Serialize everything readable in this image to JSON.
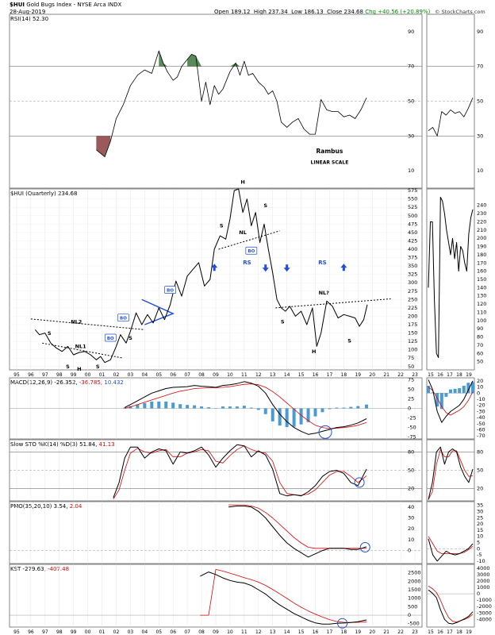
{
  "header": {
    "symbol": "$HUI",
    "name": "Gold Bugs Index - NYSE Arca INDX",
    "date": "28-Aug-2019",
    "open_label": "Open",
    "open": "189.12",
    "high_label": "High",
    "high": "237.34",
    "low_label": "Low",
    "low": "186.13",
    "close_label": "Close",
    "close": "234.68",
    "change": "Chg +40.56 (+20.89%)",
    "logo": "© StockCharts.com"
  },
  "colors": {
    "price": "#000000",
    "signal": "#e00000",
    "histogram": "#4a9ad4",
    "overbought": "#5a8a5a",
    "oversold": "#9a5a5a",
    "annot_blue": "#1f4fd8",
    "grid": "#c8c8c8"
  },
  "chart_data": [
    {
      "type": "line",
      "title": "RSI(14) 52.30",
      "label_name": "RSI(14)",
      "label_value": "52.30",
      "ylim": [
        0,
        100
      ],
      "y_ticks": [
        10,
        30,
        50,
        70,
        90
      ],
      "reference_lines": [
        30,
        50,
        70
      ],
      "x": [
        2000.6,
        2000.9,
        2001.2,
        2001.6,
        2002.0,
        2002.5,
        2003.0,
        2003.5,
        2004.0,
        2004.5,
        2005.0,
        2005.3,
        2005.6,
        2006.0,
        2006.3,
        2006.6,
        2007.0,
        2007.3,
        2007.6,
        2008.0,
        2008.3,
        2008.6,
        2008.9,
        2009.2,
        2009.5,
        2010.0,
        2010.4,
        2010.7,
        2011.0,
        2011.3,
        2011.6,
        2012.0,
        2012.4,
        2012.7,
        2013.0,
        2013.3,
        2013.6,
        2014.0,
        2014.4,
        2014.8,
        2015.2,
        2015.6,
        2016.0,
        2016.4,
        2016.8,
        2017.2,
        2017.6,
        2018.0,
        2018.4,
        2018.8,
        2019.2,
        2019.6
      ],
      "values": [
        22,
        20,
        18,
        27,
        40,
        48,
        59,
        65,
        68,
        66,
        79,
        72,
        67,
        62,
        64,
        70,
        74,
        77,
        76,
        50,
        61,
        48,
        59,
        54,
        57,
        67,
        72,
        65,
        73,
        65,
        66,
        61,
        58,
        54,
        56,
        50,
        38,
        35,
        38,
        40,
        34,
        31,
        31,
        51,
        45,
        44,
        44,
        41,
        42,
        40,
        45,
        52
      ],
      "side_values": [
        33,
        35,
        30,
        44,
        42,
        45,
        43,
        44,
        41,
        46,
        52
      ],
      "annotations": [
        {
          "text": "Rambus",
          "x": 2017.0,
          "y": 20
        },
        {
          "text": "LINEAR SCALE",
          "x": 2017.0,
          "y": 14
        }
      ]
    },
    {
      "type": "line",
      "title": "$HUI (Quarterly) 234.68",
      "label_name": "$HUI (Quarterly)",
      "label_value": "234.68",
      "ylim": [
        40,
        580
      ],
      "y_ticks": [
        50,
        75,
        100,
        125,
        150,
        175,
        200,
        225,
        250,
        275,
        300,
        325,
        350,
        375,
        400,
        425,
        450,
        475,
        500,
        525,
        550,
        575
      ],
      "x_ticks": [
        "95",
        "96",
        "97",
        "98",
        "99",
        "00",
        "01",
        "02",
        "03",
        "04",
        "05",
        "06",
        "07",
        "08",
        "09",
        "10",
        "11",
        "12",
        "13",
        "14",
        "15",
        "16",
        "17",
        "18",
        "19",
        "20",
        "21",
        "22",
        "23"
      ],
      "x": [
        1996.3,
        1996.6,
        1997.0,
        1997.4,
        1997.8,
        1998.2,
        1998.6,
        1999.0,
        1999.4,
        1999.8,
        2000.2,
        2000.6,
        2000.9,
        2001.2,
        2001.6,
        2002.0,
        2002.3,
        2002.7,
        2003.0,
        2003.4,
        2003.8,
        2004.2,
        2004.6,
        2005.0,
        2005.4,
        2005.8,
        2006.2,
        2006.6,
        2007.0,
        2007.4,
        2007.8,
        2008.2,
        2008.6,
        2008.9,
        2009.3,
        2009.7,
        2010.0,
        2010.3,
        2010.6,
        2010.9,
        2011.2,
        2011.5,
        2011.8,
        2012.1,
        2012.4,
        2012.7,
        2013.0,
        2013.3,
        2013.6,
        2013.9,
        2014.2,
        2014.6,
        2015.0,
        2015.4,
        2015.8,
        2016.1,
        2016.4,
        2016.8,
        2017.2,
        2017.6,
        2018.0,
        2018.4,
        2018.8,
        2019.1,
        2019.4,
        2019.65
      ],
      "values": [
        160,
        145,
        150,
        120,
        105,
        95,
        110,
        85,
        92,
        95,
        85,
        70,
        80,
        62,
        70,
        110,
        145,
        120,
        155,
        210,
        175,
        205,
        180,
        225,
        190,
        235,
        305,
        260,
        320,
        340,
        360,
        290,
        310,
        400,
        440,
        430,
        490,
        575,
        580,
        510,
        550,
        470,
        510,
        420,
        475,
        400,
        330,
        250,
        225,
        215,
        230,
        200,
        215,
        175,
        225,
        110,
        150,
        245,
        230,
        195,
        205,
        200,
        195,
        170,
        190,
        235
      ],
      "side_values": [
        140,
        220,
        220,
        125,
        60,
        55,
        250,
        245,
        230,
        210,
        195,
        180,
        200,
        175,
        195,
        160,
        190,
        185,
        170,
        160,
        205,
        225,
        235
      ],
      "side_ylim": [
        40,
        260
      ],
      "side_y_ticks": [
        50,
        60,
        70,
        80,
        90,
        100,
        110,
        120,
        130,
        140,
        150,
        160,
        170,
        180,
        190,
        200,
        210,
        220,
        230,
        240
      ],
      "side_x_ticks": [
        "15",
        "16",
        "17",
        "18",
        "19"
      ],
      "annotations": [
        {
          "text": "NL2",
          "x": 1999.2,
          "y": 178
        },
        {
          "text": "NL1",
          "x": 1999.5,
          "y": 105
        },
        {
          "text": "S",
          "x": 1997.3,
          "y": 144
        },
        {
          "text": "S",
          "x": 1998.6,
          "y": 45
        },
        {
          "text": "H",
          "x": 1999.4,
          "y": 38
        },
        {
          "text": "S",
          "x": 2000.7,
          "y": 45
        },
        {
          "text": "S",
          "x": 2003.0,
          "y": 130
        },
        {
          "text": "BO",
          "x": 2001.6,
          "y": 130
        },
        {
          "text": "BO",
          "x": 2002.5,
          "y": 190
        },
        {
          "text": "BO",
          "x": 2005.8,
          "y": 273
        },
        {
          "text": "S",
          "x": 2009.4,
          "y": 465
        },
        {
          "text": "NL",
          "x": 2010.9,
          "y": 445
        },
        {
          "text": "H",
          "x": 2010.9,
          "y": 595
        },
        {
          "text": "S",
          "x": 2012.5,
          "y": 525
        },
        {
          "text": "BO",
          "x": 2011.5,
          "y": 390
        },
        {
          "text": "RS",
          "x": 2011.2,
          "y": 355
        },
        {
          "text": "S",
          "x": 2013.7,
          "y": 178
        },
        {
          "text": "H",
          "x": 2015.9,
          "y": 90
        },
        {
          "text": "S",
          "x": 2018.4,
          "y": 122
        },
        {
          "text": "NL?",
          "x": 2016.6,
          "y": 265
        },
        {
          "text": "RS",
          "x": 2016.5,
          "y": 355
        }
      ]
    },
    {
      "type": "line",
      "title": "MACD(12,26,9) -26.352, -36.785, 10.432",
      "label_name": "MACD(12,26,9)",
      "label_value": "-26.352,",
      "label_signal": "-36.785,",
      "label_hist": "10.432",
      "ylim": [
        -80,
        80
      ],
      "y_ticks": [
        -75,
        -50,
        -25,
        0,
        25,
        50,
        75
      ],
      "x": [
        2002.6,
        2003.0,
        2003.5,
        2004.0,
        2004.5,
        2005.0,
        2005.5,
        2006.0,
        2006.5,
        2007.0,
        2007.5,
        2008.0,
        2008.5,
        2009.0,
        2009.5,
        2010.0,
        2010.5,
        2011.0,
        2011.5,
        2012.0,
        2012.5,
        2013.0,
        2013.5,
        2014.0,
        2014.5,
        2015.0,
        2015.5,
        2016.0,
        2016.5,
        2017.0,
        2017.5,
        2018.0,
        2018.5,
        2019.0,
        2019.6
      ],
      "series": [
        {
          "name": "MACD",
          "values": [
            2,
            10,
            20,
            30,
            40,
            46,
            52,
            55,
            56,
            57,
            60,
            58,
            57,
            55,
            60,
            62,
            65,
            70,
            66,
            58,
            40,
            10,
            -15,
            -35,
            -50,
            -60,
            -68,
            -65,
            -60,
            -55,
            -50,
            -48,
            -44,
            -38,
            -27
          ]
        },
        {
          "name": "Signal",
          "values": [
            0,
            4,
            10,
            16,
            22,
            28,
            34,
            40,
            45,
            48,
            52,
            53,
            54,
            54,
            55,
            57,
            60,
            63,
            64,
            62,
            55,
            44,
            30,
            14,
            -2,
            -18,
            -32,
            -44,
            -50,
            -53,
            -52,
            -50,
            -48,
            -44,
            -37
          ]
        },
        {
          "name": "Histogram",
          "values": [
            2,
            6,
            10,
            14,
            18,
            18,
            18,
            15,
            11,
            9,
            8,
            5,
            3,
            1,
            5,
            5,
            5,
            7,
            2,
            -4,
            -15,
            -34,
            -45,
            -49,
            -48,
            -42,
            -36,
            -21,
            -10,
            -2,
            2,
            2,
            4,
            6,
            10
          ]
        }
      ],
      "side_series": {
        "macd": [
          22,
          5,
          -30,
          -48,
          -38,
          -30,
          -25,
          -20,
          -10,
          5,
          20
        ],
        "signal": [
          10,
          4,
          -8,
          -22,
          -32,
          -36,
          -32,
          -28,
          -22,
          -12,
          2
        ],
        "hist": [
          12,
          1,
          -22,
          -26,
          -6,
          6,
          7,
          8,
          12,
          17,
          18
        ]
      },
      "side_y_ticks": [
        -70,
        -60,
        -50,
        -40,
        -30,
        -20,
        -10,
        0,
        10,
        20
      ]
    },
    {
      "type": "line",
      "title": "Slow STO %K(14) %D(3) 51.84, 41.13",
      "label_name": "Slow STO %K(14) %D(3)",
      "label_value": "51.84,",
      "label_signal": "41.13",
      "ylim": [
        0,
        100
      ],
      "y_ticks": [
        20,
        50,
        80
      ],
      "x": [
        2001.8,
        2002.2,
        2002.6,
        2003.0,
        2003.5,
        2004.0,
        2004.5,
        2005.0,
        2005.5,
        2006.0,
        2006.5,
        2007.0,
        2007.5,
        2008.0,
        2008.5,
        2009.0,
        2009.5,
        2010.0,
        2010.5,
        2011.0,
        2011.5,
        2012.0,
        2012.5,
        2013.0,
        2013.5,
        2014.0,
        2014.5,
        2015.0,
        2015.5,
        2016.0,
        2016.5,
        2017.0,
        2017.5,
        2018.0,
        2018.5,
        2019.0,
        2019.6
      ],
      "series": [
        {
          "name": "%K",
          "values": [
            5,
            30,
            70,
            88,
            88,
            70,
            80,
            85,
            82,
            60,
            80,
            78,
            82,
            88,
            75,
            55,
            70,
            82,
            92,
            90,
            72,
            82,
            75,
            52,
            12,
            8,
            10,
            8,
            15,
            25,
            40,
            48,
            50,
            45,
            30,
            25,
            52
          ]
        },
        {
          "name": "%D",
          "values": [
            3,
            18,
            50,
            78,
            86,
            80,
            78,
            82,
            84,
            72,
            72,
            78,
            80,
            84,
            82,
            65,
            62,
            74,
            84,
            90,
            84,
            80,
            78,
            65,
            30,
            12,
            10,
            9,
            11,
            18,
            30,
            42,
            48,
            48,
            40,
            30,
            41
          ]
        }
      ],
      "side_series": {
        "k": [
          2,
          30,
          80,
          88,
          60,
          80,
          85,
          80,
          55,
          40,
          30,
          52
        ],
        "d": [
          2,
          15,
          60,
          84,
          72,
          72,
          82,
          82,
          66,
          50,
          40,
          41
        ]
      }
    },
    {
      "type": "line",
      "title": "PMO(35,20,10) 3.54, 2.04",
      "label_name": "PMO(35,20,10)",
      "label_value": "3.54,",
      "label_signal": "2.04",
      "ylim": [
        -12,
        45
      ],
      "y_ticks": [
        0,
        10,
        20,
        30,
        40
      ],
      "x": [
        2009.9,
        2010.5,
        2011.0,
        2011.5,
        2012.0,
        2012.5,
        2013.0,
        2013.5,
        2014.0,
        2014.5,
        2015.0,
        2015.5,
        2016.0,
        2016.5,
        2017.0,
        2017.5,
        2018.0,
        2018.5,
        2019.0,
        2019.6
      ],
      "series": [
        {
          "name": "PMO",
          "values": [
            40,
            41,
            41,
            40,
            36,
            30,
            22,
            14,
            7,
            2,
            -2,
            -6,
            -3,
            0,
            2,
            2,
            2,
            1,
            1,
            3.5
          ]
        },
        {
          "name": "Signal",
          "values": [
            42,
            42,
            42,
            41,
            39,
            35,
            30,
            24,
            18,
            12,
            7,
            3,
            2,
            2,
            2,
            2,
            2,
            2,
            2,
            2
          ]
        }
      ],
      "side_series": {
        "pmo": [
          8,
          -5,
          -10,
          -6,
          -2,
          -4,
          -5,
          -4,
          -2,
          0,
          4
        ],
        "signal": [
          10,
          4,
          -2,
          -4,
          -4,
          -4,
          -4,
          -4,
          -3,
          -1,
          2
        ]
      },
      "side_y_ticks": [
        -10,
        -5,
        0,
        5,
        10,
        15,
        20,
        25,
        30,
        35
      ]
    },
    {
      "type": "line",
      "title": "KST -279.63, -407.48",
      "label_name": "KST",
      "label_value": "-279.63,",
      "label_signal": "-407.48",
      "ylim": [
        -700,
        3000
      ],
      "y_ticks": [
        -500,
        0,
        500,
        1000,
        1500,
        2000,
        2500
      ],
      "x": [
        2007.9,
        2008.5,
        2009.0,
        2009.5,
        2010.0,
        2010.5,
        2011.0,
        2011.5,
        2012.0,
        2012.5,
        2013.0,
        2013.5,
        2014.0,
        2014.5,
        2015.0,
        2015.5,
        2016.0,
        2016.5,
        2017.0,
        2017.5,
        2018.0,
        2018.5,
        2019.0,
        2019.6
      ],
      "series": [
        {
          "name": "KST",
          "values": [
            2300,
            2550,
            2400,
            2200,
            2050,
            1950,
            1900,
            1750,
            1500,
            1250,
            900,
            600,
            350,
            100,
            -100,
            -300,
            -450,
            -520,
            -520,
            -480,
            -460,
            -430,
            -380,
            -280
          ]
        },
        {
          "name": "Signal",
          "values": [
            null,
            null,
            2700,
            2600,
            2480,
            2350,
            2220,
            2100,
            1950,
            1760,
            1520,
            1260,
            990,
            720,
            470,
            250,
            60,
            -110,
            -260,
            -370,
            -420,
            -430,
            -420,
            -407
          ]
        }
      ],
      "side_series": {
        "kst": [
          600,
          100,
          -600,
          -2500,
          -4000,
          -4600,
          -4700,
          -4500,
          -4200,
          -3900,
          -3500,
          -2800
        ],
        "signal": [
          1200,
          800,
          200,
          -1000,
          -2500,
          -3700,
          -4300,
          -4400,
          -4200,
          -4000,
          -3700,
          -3200
        ]
      },
      "side_y_ticks": [
        -4000,
        -3000,
        -2000,
        -1000,
        0,
        1000,
        2000,
        3000,
        4000
      ]
    }
  ]
}
